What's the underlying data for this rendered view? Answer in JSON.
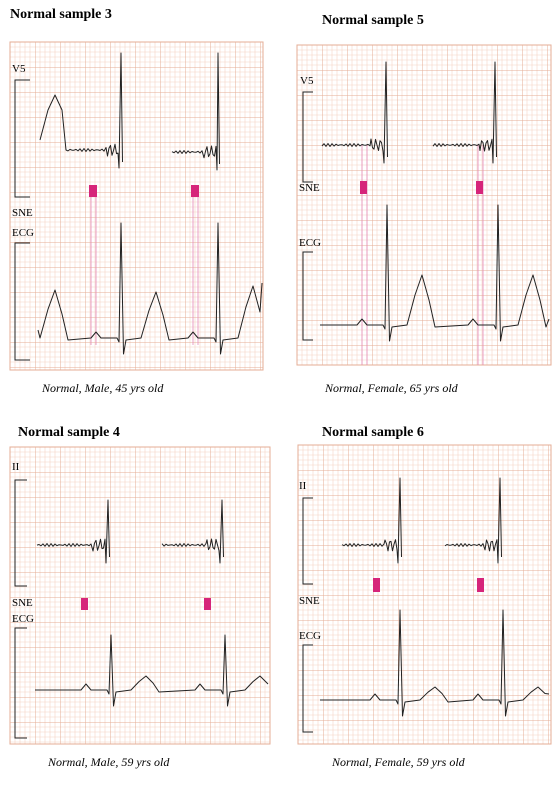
{
  "panels": [
    {
      "title": "Normal sample 3",
      "lead": "V5",
      "sne_label": "SNE",
      "ecg_label": "ECG",
      "caption": "Normal, Male, 45 yrs old"
    },
    {
      "title": "Normal sample 5",
      "lead": "V5",
      "sne_label": "SNE",
      "ecg_label": "ECG",
      "caption": "Normal, Female, 65 yrs old"
    },
    {
      "title": "Normal sample 4",
      "lead": "II",
      "sne_label": "SNE",
      "ecg_label": "ECG",
      "caption": "Normal, Male, 59 yrs old"
    },
    {
      "title": "Normal sample 6",
      "lead": "II",
      "sne_label": "SNE",
      "ecg_label": "ECG",
      "caption": "Normal, Female, 59 yrs old"
    }
  ]
}
